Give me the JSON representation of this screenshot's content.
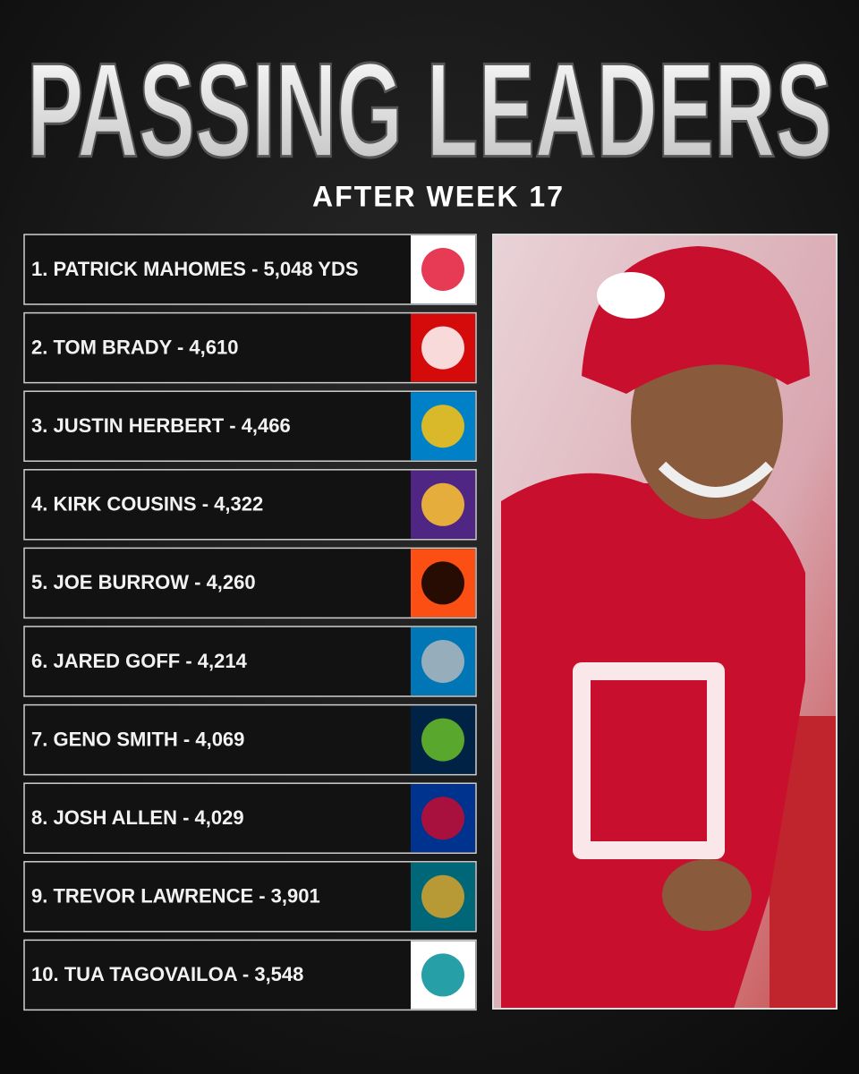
{
  "header": {
    "title": "PASSING LEADERS",
    "subtitle": "AFTER WEEK 17"
  },
  "leaders": [
    "1. PATRICK MAHOMES - 5,048 YDS",
    "2. TOM BRADY - 4,610",
    "3. JUSTIN HERBERT - 4,466",
    "4. KIRK COUSINS - 4,322",
    "5. JOE BURROW - 4,260",
    "6. JARED GOFF - 4,214",
    "7. GENO SMITH - 4,069",
    "8. JOSH ALLEN - 4,029",
    "9. TREVOR LAWRENCE - 3,901",
    "10. TUA TAGOVAILOA - 3,548"
  ]
}
